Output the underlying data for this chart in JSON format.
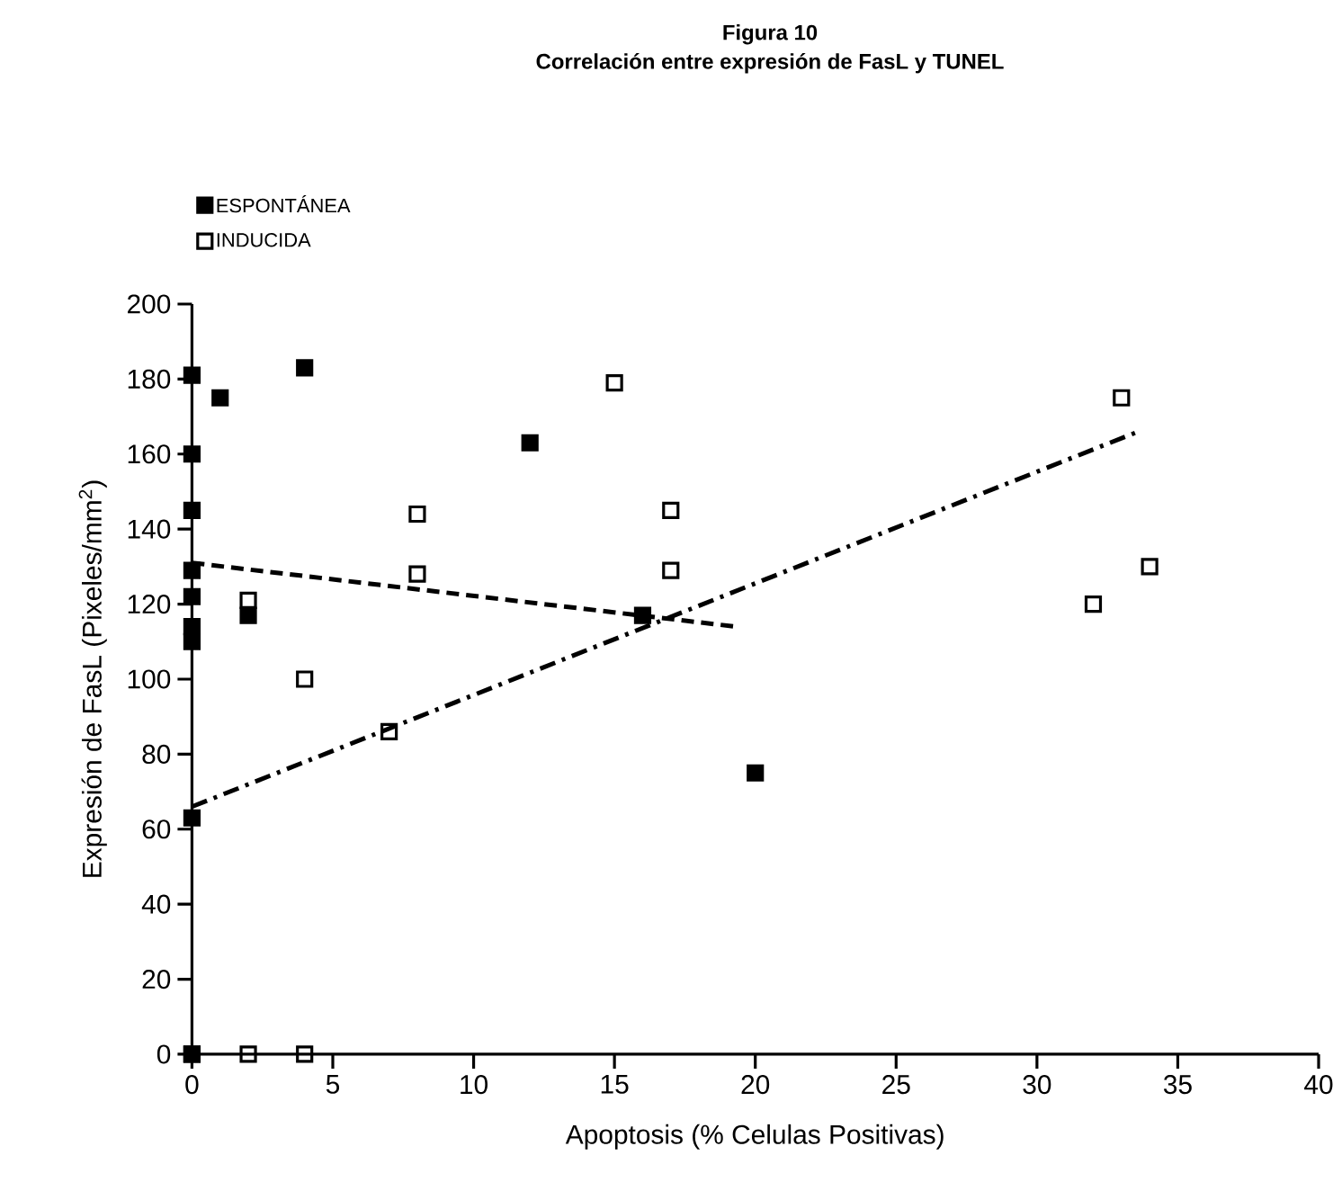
{
  "chart_data": {
    "type": "scatter",
    "title": "Figura 10",
    "subtitle": "Correlación entre expresión de FasL y TUNEL",
    "xlabel": "Apoptosis (% Celulas Positivas)",
    "ylabel": "Expresión de FasL (Pixeles/mm$^{2}$)",
    "xlim": [
      0,
      40
    ],
    "ylim": [
      0,
      200
    ],
    "xticks": [
      0,
      5,
      10,
      15,
      20,
      25,
      30,
      35,
      40
    ],
    "yticks": [
      0,
      20,
      40,
      60,
      80,
      100,
      120,
      140,
      160,
      180,
      200
    ],
    "legend": "top left",
    "grid": false,
    "series": [
      {
        "name": "ESPONTÁNEA",
        "color": "#000000",
        "marker": "square",
        "x": [
          0,
          0,
          0,
          0,
          0,
          0,
          0,
          0,
          0,
          1,
          2,
          4,
          12,
          16,
          20
        ],
        "values": [
          181,
          160,
          145,
          129,
          122,
          114,
          110,
          63,
          0,
          175,
          117,
          183,
          163,
          117,
          75
        ]
      },
      {
        "name": "INDUCIDA",
        "color": "#000000",
        "marker": "square",
        "x": [
          0,
          2,
          2,
          4,
          4,
          7,
          8,
          8,
          15,
          17,
          17,
          32,
          33,
          34
        ],
        "values": [
          0,
          0,
          121,
          0,
          100,
          86,
          144,
          128,
          179,
          145,
          129,
          120,
          175,
          130
        ]
      },
      {
        "type": "line",
        "color": "#000000",
        "line_style": "dashed",
        "marker": "none",
        "x": [
          0,
          19.3
        ],
        "values": [
          131,
          114
        ]
      },
      {
        "type": "line",
        "color": "#000000",
        "line_style": "dashdot",
        "marker": "none",
        "x": [
          0,
          33.6
        ],
        "values": [
          66,
          166
        ]
      }
    ]
  }
}
